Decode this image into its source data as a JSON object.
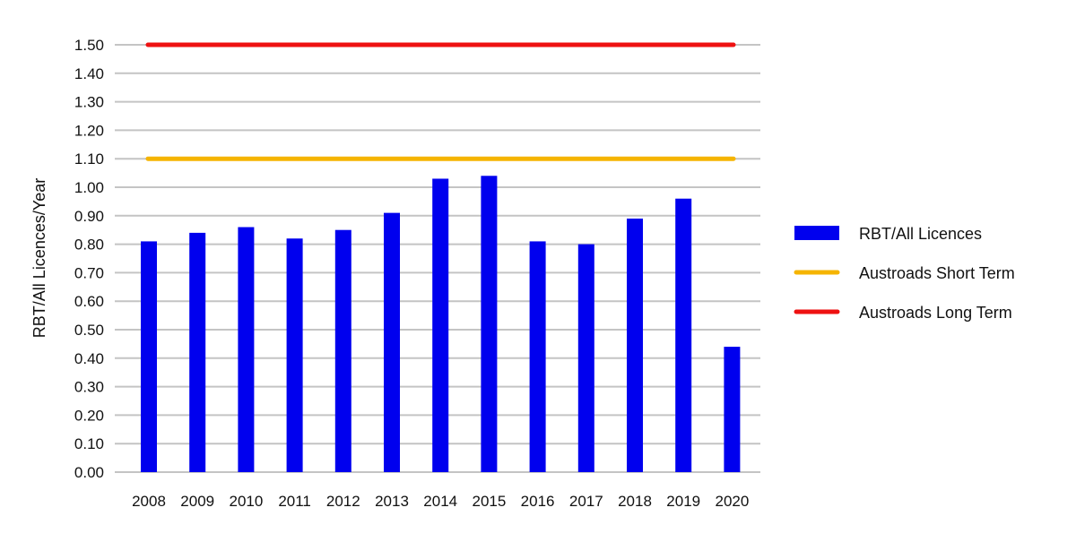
{
  "chart_data": {
    "type": "bar",
    "title": "",
    "xlabel": "",
    "ylabel": "RBT/All Licences/Year",
    "ylim": [
      0,
      1.5
    ],
    "yticks": [
      "0.00",
      "0.10",
      "0.20",
      "0.30",
      "0.40",
      "0.50",
      "0.60",
      "0.70",
      "0.80",
      "0.90",
      "1.00",
      "1.10",
      "1.20",
      "1.30",
      "1.40",
      "1.50"
    ],
    "categories": [
      "2008",
      "2009",
      "2010",
      "2011",
      "2012",
      "2013",
      "2014",
      "2015",
      "2016",
      "2017",
      "2018",
      "2019",
      "2020"
    ],
    "series": [
      {
        "name": "RBT/All Licences",
        "type": "bar",
        "color": "#0000ee",
        "values": [
          0.81,
          0.84,
          0.86,
          0.82,
          0.85,
          0.91,
          1.03,
          1.04,
          0.81,
          0.8,
          0.89,
          0.96,
          0.44
        ]
      },
      {
        "name": "Austroads Short Term",
        "type": "line",
        "color": "#f5b400",
        "value": 1.1
      },
      {
        "name": "Austroads Long Term",
        "type": "line",
        "color": "#ee1111",
        "value": 1.5
      }
    ],
    "grid": true,
    "legend": "right"
  }
}
